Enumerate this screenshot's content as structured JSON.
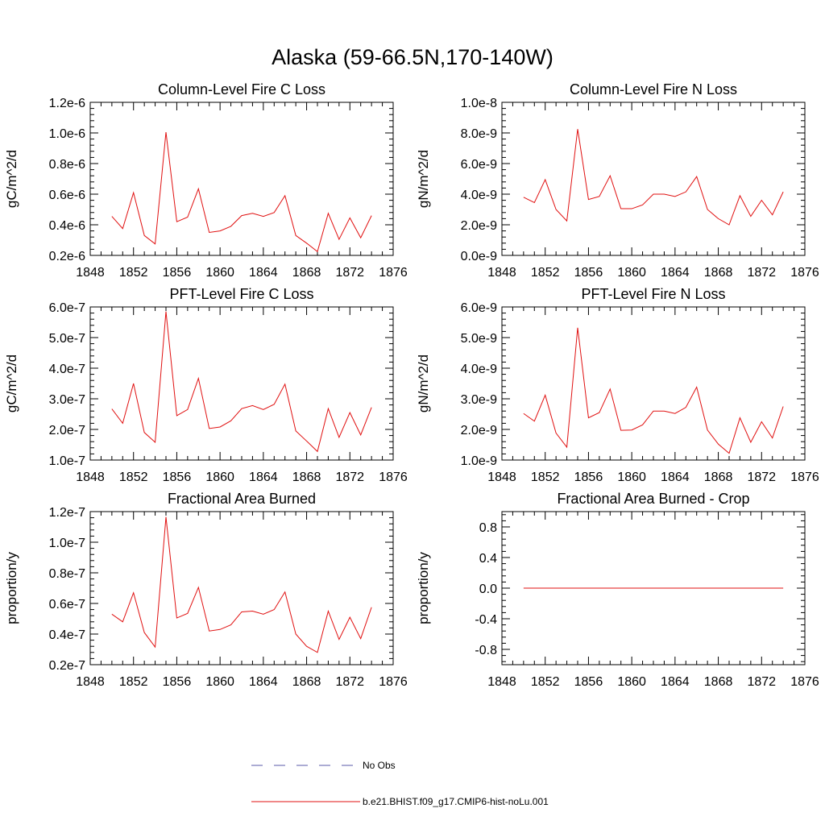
{
  "figure_title": "Alaska (59-66.5N,170-140W)",
  "colors": {
    "model": "#e01010",
    "obs": "#5a5aa8",
    "axis": "#000000"
  },
  "legend": [
    {
      "label": "No Obs",
      "style": "dashed",
      "color": "#5a5aa8"
    },
    {
      "label": "b.e21.BHIST.f09_g17.CMIP6-hist-noLu.001",
      "style": "solid",
      "color": "#e01010"
    }
  ],
  "chart_data": [
    {
      "type": "line",
      "title": "Column-Level Fire C Loss",
      "ylabel": "gC/m^2/d",
      "xlim": [
        1848,
        1876
      ],
      "xticks": [
        1848,
        1852,
        1856,
        1860,
        1864,
        1868,
        1872,
        1876
      ],
      "ylim": [
        2e-07,
        1.2e-06
      ],
      "yticks": [
        2e-07,
        4e-07,
        6e-07,
        8e-07,
        1e-06,
        1.2e-06
      ],
      "ytick_labels": [
        "0.2e-6",
        "0.4e-6",
        "0.6e-6",
        "0.8e-6",
        "1.0e-6",
        "1.2e-6"
      ],
      "x": [
        1850,
        1851,
        1852,
        1853,
        1854,
        1855,
        1856,
        1857,
        1858,
        1859,
        1860,
        1861,
        1862,
        1863,
        1864,
        1865,
        1866,
        1867,
        1868,
        1869,
        1870,
        1871,
        1872,
        1873,
        1874
      ],
      "values": [
        4.55e-07,
        3.75e-07,
        6.1e-07,
        3.3e-07,
        2.75e-07,
        1.005e-06,
        4.2e-07,
        4.5e-07,
        6.35e-07,
        3.5e-07,
        3.6e-07,
        3.9e-07,
        4.6e-07,
        4.75e-07,
        4.55e-07,
        4.8e-07,
        5.9e-07,
        3.3e-07,
        2.8e-07,
        2.25e-07,
        4.75e-07,
        3.05e-07,
        4.45e-07,
        3.15e-07,
        4.6e-07
      ]
    },
    {
      "type": "line",
      "title": "Column-Level Fire N Loss",
      "ylabel": "gN/m^2/d",
      "xlim": [
        1848,
        1876
      ],
      "xticks": [
        1848,
        1852,
        1856,
        1860,
        1864,
        1868,
        1872,
        1876
      ],
      "ylim": [
        0.0,
        1e-08
      ],
      "yticks": [
        0.0,
        2e-09,
        4e-09,
        6e-09,
        8e-09,
        1e-08
      ],
      "ytick_labels": [
        "0.0e-9",
        "2.0e-9",
        "4.0e-9",
        "6.0e-9",
        "8.0e-9",
        "1.0e-8"
      ],
      "x": [
        1850,
        1851,
        1852,
        1853,
        1854,
        1855,
        1856,
        1857,
        1858,
        1859,
        1860,
        1861,
        1862,
        1863,
        1864,
        1865,
        1866,
        1867,
        1868,
        1869,
        1870,
        1871,
        1872,
        1873,
        1874
      ],
      "values": [
        3.8e-09,
        3.45e-09,
        4.95e-09,
        3e-09,
        2.25e-09,
        8.25e-09,
        3.65e-09,
        3.85e-09,
        5.2e-09,
        3.05e-09,
        3.05e-09,
        3.3e-09,
        4e-09,
        4e-09,
        3.85e-09,
        4.15e-09,
        5.15e-09,
        3e-09,
        2.4e-09,
        2e-09,
        3.9e-09,
        2.55e-09,
        3.6e-09,
        2.65e-09,
        4.15e-09
      ]
    },
    {
      "type": "line",
      "title": "PFT-Level Fire C Loss",
      "ylabel": "gC/m^2/d",
      "xlim": [
        1848,
        1876
      ],
      "xticks": [
        1848,
        1852,
        1856,
        1860,
        1864,
        1868,
        1872,
        1876
      ],
      "ylim": [
        1e-07,
        6e-07
      ],
      "yticks": [
        1e-07,
        2e-07,
        3e-07,
        4e-07,
        5e-07,
        6e-07
      ],
      "ytick_labels": [
        "1.0e-7",
        "2.0e-7",
        "3.0e-7",
        "4.0e-7",
        "5.0e-7",
        "6.0e-7"
      ],
      "x": [
        1850,
        1851,
        1852,
        1853,
        1854,
        1855,
        1856,
        1857,
        1858,
        1859,
        1860,
        1861,
        1862,
        1863,
        1864,
        1865,
        1866,
        1867,
        1868,
        1869,
        1870,
        1871,
        1872,
        1873,
        1874
      ],
      "values": [
        2.67e-07,
        2.2e-07,
        3.5e-07,
        1.9e-07,
        1.58e-07,
        5.85e-07,
        2.45e-07,
        2.65e-07,
        3.67e-07,
        2.03e-07,
        2.08e-07,
        2.28e-07,
        2.68e-07,
        2.78e-07,
        2.65e-07,
        2.82e-07,
        3.48e-07,
        1.95e-07,
        1.62e-07,
        1.28e-07,
        2.68e-07,
        1.74e-07,
        2.55e-07,
        1.82e-07,
        2.72e-07
      ]
    },
    {
      "type": "line",
      "title": "PFT-Level Fire N Loss",
      "ylabel": "gN/m^2/d",
      "xlim": [
        1848,
        1876
      ],
      "xticks": [
        1848,
        1852,
        1856,
        1860,
        1864,
        1868,
        1872,
        1876
      ],
      "ylim": [
        1e-09,
        6e-09
      ],
      "yticks": [
        1e-09,
        2e-09,
        3e-09,
        4e-09,
        5e-09,
        6e-09
      ],
      "ytick_labels": [
        "1.0e-9",
        "2.0e-9",
        "3.0e-9",
        "4.0e-9",
        "5.0e-9",
        "6.0e-9"
      ],
      "x": [
        1850,
        1851,
        1852,
        1853,
        1854,
        1855,
        1856,
        1857,
        1858,
        1859,
        1860,
        1861,
        1862,
        1863,
        1864,
        1865,
        1866,
        1867,
        1868,
        1869,
        1870,
        1871,
        1872,
        1873,
        1874
      ],
      "values": [
        2.52e-09,
        2.27e-09,
        3.12e-09,
        1.88e-09,
        1.42e-09,
        5.32e-09,
        2.38e-09,
        2.55e-09,
        3.32e-09,
        1.97e-09,
        1.98e-09,
        2.15e-09,
        2.6e-09,
        2.6e-09,
        2.52e-09,
        2.72e-09,
        3.38e-09,
        1.98e-09,
        1.52e-09,
        1.22e-09,
        2.38e-09,
        1.58e-09,
        2.25e-09,
        1.72e-09,
        2.75e-09
      ]
    },
    {
      "type": "line",
      "title": "Fractional Area Burned",
      "ylabel": "proportion/y",
      "xlim": [
        1848,
        1876
      ],
      "xticks": [
        1848,
        1852,
        1856,
        1860,
        1864,
        1868,
        1872,
        1876
      ],
      "ylim": [
        2e-08,
        1.2e-07
      ],
      "yticks": [
        2e-08,
        4e-08,
        6e-08,
        8e-08,
        1e-07,
        1.2e-07
      ],
      "ytick_labels": [
        "0.2e-7",
        "0.4e-7",
        "0.6e-7",
        "0.8e-7",
        "1.0e-7",
        "1.2e-7"
      ],
      "x": [
        1850,
        1851,
        1852,
        1853,
        1854,
        1855,
        1856,
        1857,
        1858,
        1859,
        1860,
        1861,
        1862,
        1863,
        1864,
        1865,
        1866,
        1867,
        1868,
        1869,
        1870,
        1871,
        1872,
        1873,
        1874
      ],
      "values": [
        5.3e-08,
        4.8e-08,
        6.7e-08,
        4.1e-08,
        3.15e-08,
        1.165e-07,
        5.05e-08,
        5.35e-08,
        7.05e-08,
        4.2e-08,
        4.3e-08,
        4.6e-08,
        5.45e-08,
        5.5e-08,
        5.3e-08,
        5.6e-08,
        6.75e-08,
        4e-08,
        3.2e-08,
        2.8e-08,
        5.5e-08,
        3.65e-08,
        5.1e-08,
        3.7e-08,
        5.75e-08
      ]
    },
    {
      "type": "line",
      "title": "Fractional Area Burned - Crop",
      "ylabel": "proportion/y",
      "xlim": [
        1848,
        1876
      ],
      "xticks": [
        1848,
        1852,
        1856,
        1860,
        1864,
        1868,
        1872,
        1876
      ],
      "ylim": [
        -1.0,
        1.0
      ],
      "yticks": [
        -0.8,
        -0.4,
        0.0,
        0.4,
        0.8
      ],
      "ytick_labels": [
        "-0.8",
        "-0.4",
        "0.0",
        "0.4",
        "0.8"
      ],
      "x": [
        1850,
        1851,
        1852,
        1853,
        1854,
        1855,
        1856,
        1857,
        1858,
        1859,
        1860,
        1861,
        1862,
        1863,
        1864,
        1865,
        1866,
        1867,
        1868,
        1869,
        1870,
        1871,
        1872,
        1873,
        1874
      ],
      "values": [
        0,
        0,
        0,
        0,
        0,
        0,
        0,
        0,
        0,
        0,
        0,
        0,
        0,
        0,
        0,
        0,
        0,
        0,
        0,
        0,
        0,
        0,
        0,
        0,
        0
      ]
    }
  ]
}
